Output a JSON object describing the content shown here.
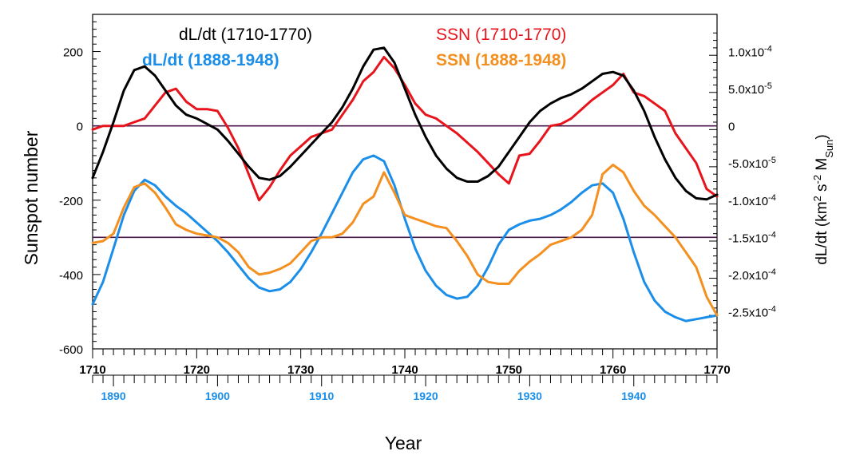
{
  "chart_data": {
    "type": "line",
    "left_axis": {
      "label": "Sunspot number",
      "ylim": [
        -600,
        300
      ],
      "ticks": [
        200,
        0,
        -200,
        -400,
        -600
      ],
      "tick_labels": [
        "200",
        "0",
        "-200",
        "-400",
        "-600"
      ]
    },
    "right_axis": {
      "label_main": "dL/dt (km",
      "label_sup1": "2",
      "label_mid": " s",
      "label_sup2": "-2",
      "label_m": " M",
      "label_sub": "Sun",
      "label_close": ")",
      "tick_labels": [
        {
          "v": 0.0001,
          "mant": "1.0x10",
          "exp": "-4"
        },
        {
          "v": 5e-05,
          "mant": "5.0x10",
          "exp": "-5"
        },
        {
          "v": 0,
          "mant": "0",
          "exp": ""
        },
        {
          "v": -5e-05,
          "mant": "-5.0x10",
          "exp": "-5"
        },
        {
          "v": -0.0001,
          "mant": "-1.0x10",
          "exp": "-4"
        },
        {
          "v": -0.00015,
          "mant": "-1.5x10",
          "exp": "-4"
        },
        {
          "v": -0.0002,
          "mant": "-2.0x10",
          "exp": "-4"
        },
        {
          "v": -0.00025,
          "mant": "-2.5x10",
          "exp": "-4"
        }
      ]
    },
    "x_axis_top": {
      "xlim": [
        1710,
        1770
      ],
      "ticks": [
        1710,
        1720,
        1730,
        1740,
        1750,
        1760,
        1770
      ],
      "tick_labels": [
        "1710",
        "1720",
        "1730",
        "1740",
        "1750",
        "1760",
        "1770"
      ]
    },
    "x_axis_bottom": {
      "xlim": [
        1888,
        1948
      ],
      "ticks": [
        1890,
        1900,
        1910,
        1920,
        1930,
        1940
      ],
      "tick_labels": [
        "1890",
        "1900",
        "1910",
        "1920",
        "1930",
        "1940"
      ]
    },
    "xlabel": "Year",
    "reference_lines": [
      {
        "axis": "left",
        "y": 0,
        "color": "#4a1a4a"
      },
      {
        "axis": "left",
        "y": -300,
        "color": "#4a1a4a"
      }
    ],
    "series": [
      {
        "name": "dL/dt (1710-1770)",
        "color": "#000000",
        "label_color": "#000000",
        "bold_label": false,
        "x": [
          1710,
          1711,
          1712,
          1713,
          1714,
          1715,
          1716,
          1717,
          1718,
          1719,
          1720,
          1721,
          1722,
          1723,
          1724,
          1725,
          1726,
          1727,
          1728,
          1729,
          1730,
          1731,
          1732,
          1733,
          1734,
          1735,
          1736,
          1737,
          1738,
          1739,
          1740,
          1741,
          1742,
          1743,
          1744,
          1745,
          1746,
          1747,
          1748,
          1749,
          1750,
          1751,
          1752,
          1753,
          1754,
          1755,
          1756,
          1757,
          1758,
          1759,
          1760,
          1761,
          1762,
          1763,
          1764,
          1765,
          1766,
          1767,
          1768,
          1769,
          1770
        ],
        "y": [
          -140,
          -70,
          10,
          95,
          150,
          160,
          135,
          95,
          55,
          30,
          20,
          5,
          -10,
          -40,
          -75,
          -110,
          -140,
          -145,
          -135,
          -110,
          -80,
          -50,
          -20,
          10,
          50,
          100,
          160,
          205,
          210,
          170,
          100,
          30,
          -30,
          -80,
          -115,
          -140,
          -150,
          -150,
          -135,
          -110,
          -70,
          -30,
          10,
          40,
          60,
          75,
          85,
          100,
          120,
          140,
          145,
          135,
          95,
          40,
          -30,
          -90,
          -140,
          -175,
          -195,
          -198,
          -185
        ]
      },
      {
        "name": "SSN (1710-1770)",
        "color": "#e8141c",
        "label_color": "#e8141c",
        "bold_label": false,
        "x": [
          1710,
          1711,
          1712,
          1713,
          1714,
          1715,
          1716,
          1717,
          1718,
          1719,
          1720,
          1721,
          1722,
          1723,
          1724,
          1725,
          1726,
          1727,
          1728,
          1729,
          1730,
          1731,
          1732,
          1733,
          1734,
          1735,
          1736,
          1737,
          1738,
          1739,
          1740,
          1741,
          1742,
          1743,
          1744,
          1745,
          1746,
          1747,
          1748,
          1749,
          1750,
          1751,
          1752,
          1753,
          1754,
          1755,
          1756,
          1757,
          1758,
          1759,
          1760,
          1761,
          1762,
          1763,
          1764,
          1765,
          1766,
          1767,
          1768,
          1769,
          1770
        ],
        "y": [
          -10,
          0,
          0,
          0,
          10,
          20,
          55,
          90,
          100,
          65,
          45,
          45,
          40,
          -5,
          -60,
          -130,
          -200,
          -165,
          -120,
          -80,
          -55,
          -30,
          -20,
          -10,
          30,
          70,
          120,
          145,
          185,
          155,
          110,
          60,
          30,
          20,
          0,
          -20,
          -45,
          -70,
          -100,
          -130,
          -155,
          -80,
          -75,
          -40,
          0,
          5,
          20,
          45,
          70,
          90,
          110,
          140,
          90,
          80,
          60,
          40,
          -20,
          -60,
          -100,
          -170,
          -190
        ]
      },
      {
        "name": "dL/dt (1888-1948)",
        "color": "#1a8ee8",
        "label_color": "#1a8ee8",
        "bold_label": true,
        "x": [
          1710,
          1711,
          1712,
          1713,
          1714,
          1715,
          1716,
          1717,
          1718,
          1719,
          1720,
          1721,
          1722,
          1723,
          1724,
          1725,
          1726,
          1727,
          1728,
          1729,
          1730,
          1731,
          1732,
          1733,
          1734,
          1735,
          1736,
          1737,
          1738,
          1739,
          1740,
          1741,
          1742,
          1743,
          1744,
          1745,
          1746,
          1747,
          1748,
          1749,
          1750,
          1751,
          1752,
          1753,
          1754,
          1755,
          1756,
          1757,
          1758,
          1759,
          1760,
          1761,
          1762,
          1763,
          1764,
          1765,
          1766,
          1767,
          1768,
          1769,
          1770
        ],
        "y": [
          -480,
          -420,
          -330,
          -240,
          -175,
          -145,
          -160,
          -190,
          -215,
          -235,
          -260,
          -285,
          -310,
          -340,
          -375,
          -410,
          -435,
          -445,
          -440,
          -420,
          -385,
          -340,
          -290,
          -235,
          -180,
          -125,
          -90,
          -80,
          -95,
          -160,
          -250,
          -330,
          -390,
          -430,
          -455,
          -465,
          -460,
          -430,
          -380,
          -320,
          -280,
          -265,
          -255,
          -250,
          -240,
          -225,
          -205,
          -180,
          -160,
          -155,
          -180,
          -250,
          -340,
          -420,
          -470,
          -500,
          -515,
          -525,
          -520,
          -515,
          -510
        ]
      },
      {
        "name": "SSN (1888-1948)",
        "color": "#f39020",
        "label_color": "#f39020",
        "bold_label": true,
        "x": [
          1710,
          1711,
          1712,
          1713,
          1714,
          1715,
          1716,
          1717,
          1718,
          1719,
          1720,
          1721,
          1722,
          1723,
          1724,
          1725,
          1726,
          1727,
          1728,
          1729,
          1730,
          1731,
          1732,
          1733,
          1734,
          1735,
          1736,
          1737,
          1738,
          1739,
          1740,
          1741,
          1742,
          1743,
          1744,
          1745,
          1746,
          1747,
          1748,
          1749,
          1750,
          1751,
          1752,
          1753,
          1754,
          1755,
          1756,
          1757,
          1758,
          1759,
          1760,
          1761,
          1762,
          1763,
          1764,
          1765,
          1766,
          1767,
          1768,
          1769,
          1770
        ],
        "y": [
          -315,
          -310,
          -290,
          -220,
          -165,
          -155,
          -180,
          -220,
          -265,
          -280,
          -290,
          -295,
          -300,
          -315,
          -340,
          -380,
          -400,
          -395,
          -385,
          -370,
          -340,
          -310,
          -300,
          -300,
          -290,
          -260,
          -210,
          -190,
          -125,
          -180,
          -240,
          -250,
          -260,
          -270,
          -275,
          -310,
          -350,
          -400,
          -420,
          -425,
          -425,
          -390,
          -365,
          -345,
          -320,
          -310,
          -300,
          -280,
          -240,
          -130,
          -105,
          -125,
          -175,
          -215,
          -240,
          -270,
          -300,
          -340,
          -380,
          -460,
          -510
        ]
      }
    ],
    "legend_placement": "top, inside plot (two columns)",
    "grid": false
  }
}
